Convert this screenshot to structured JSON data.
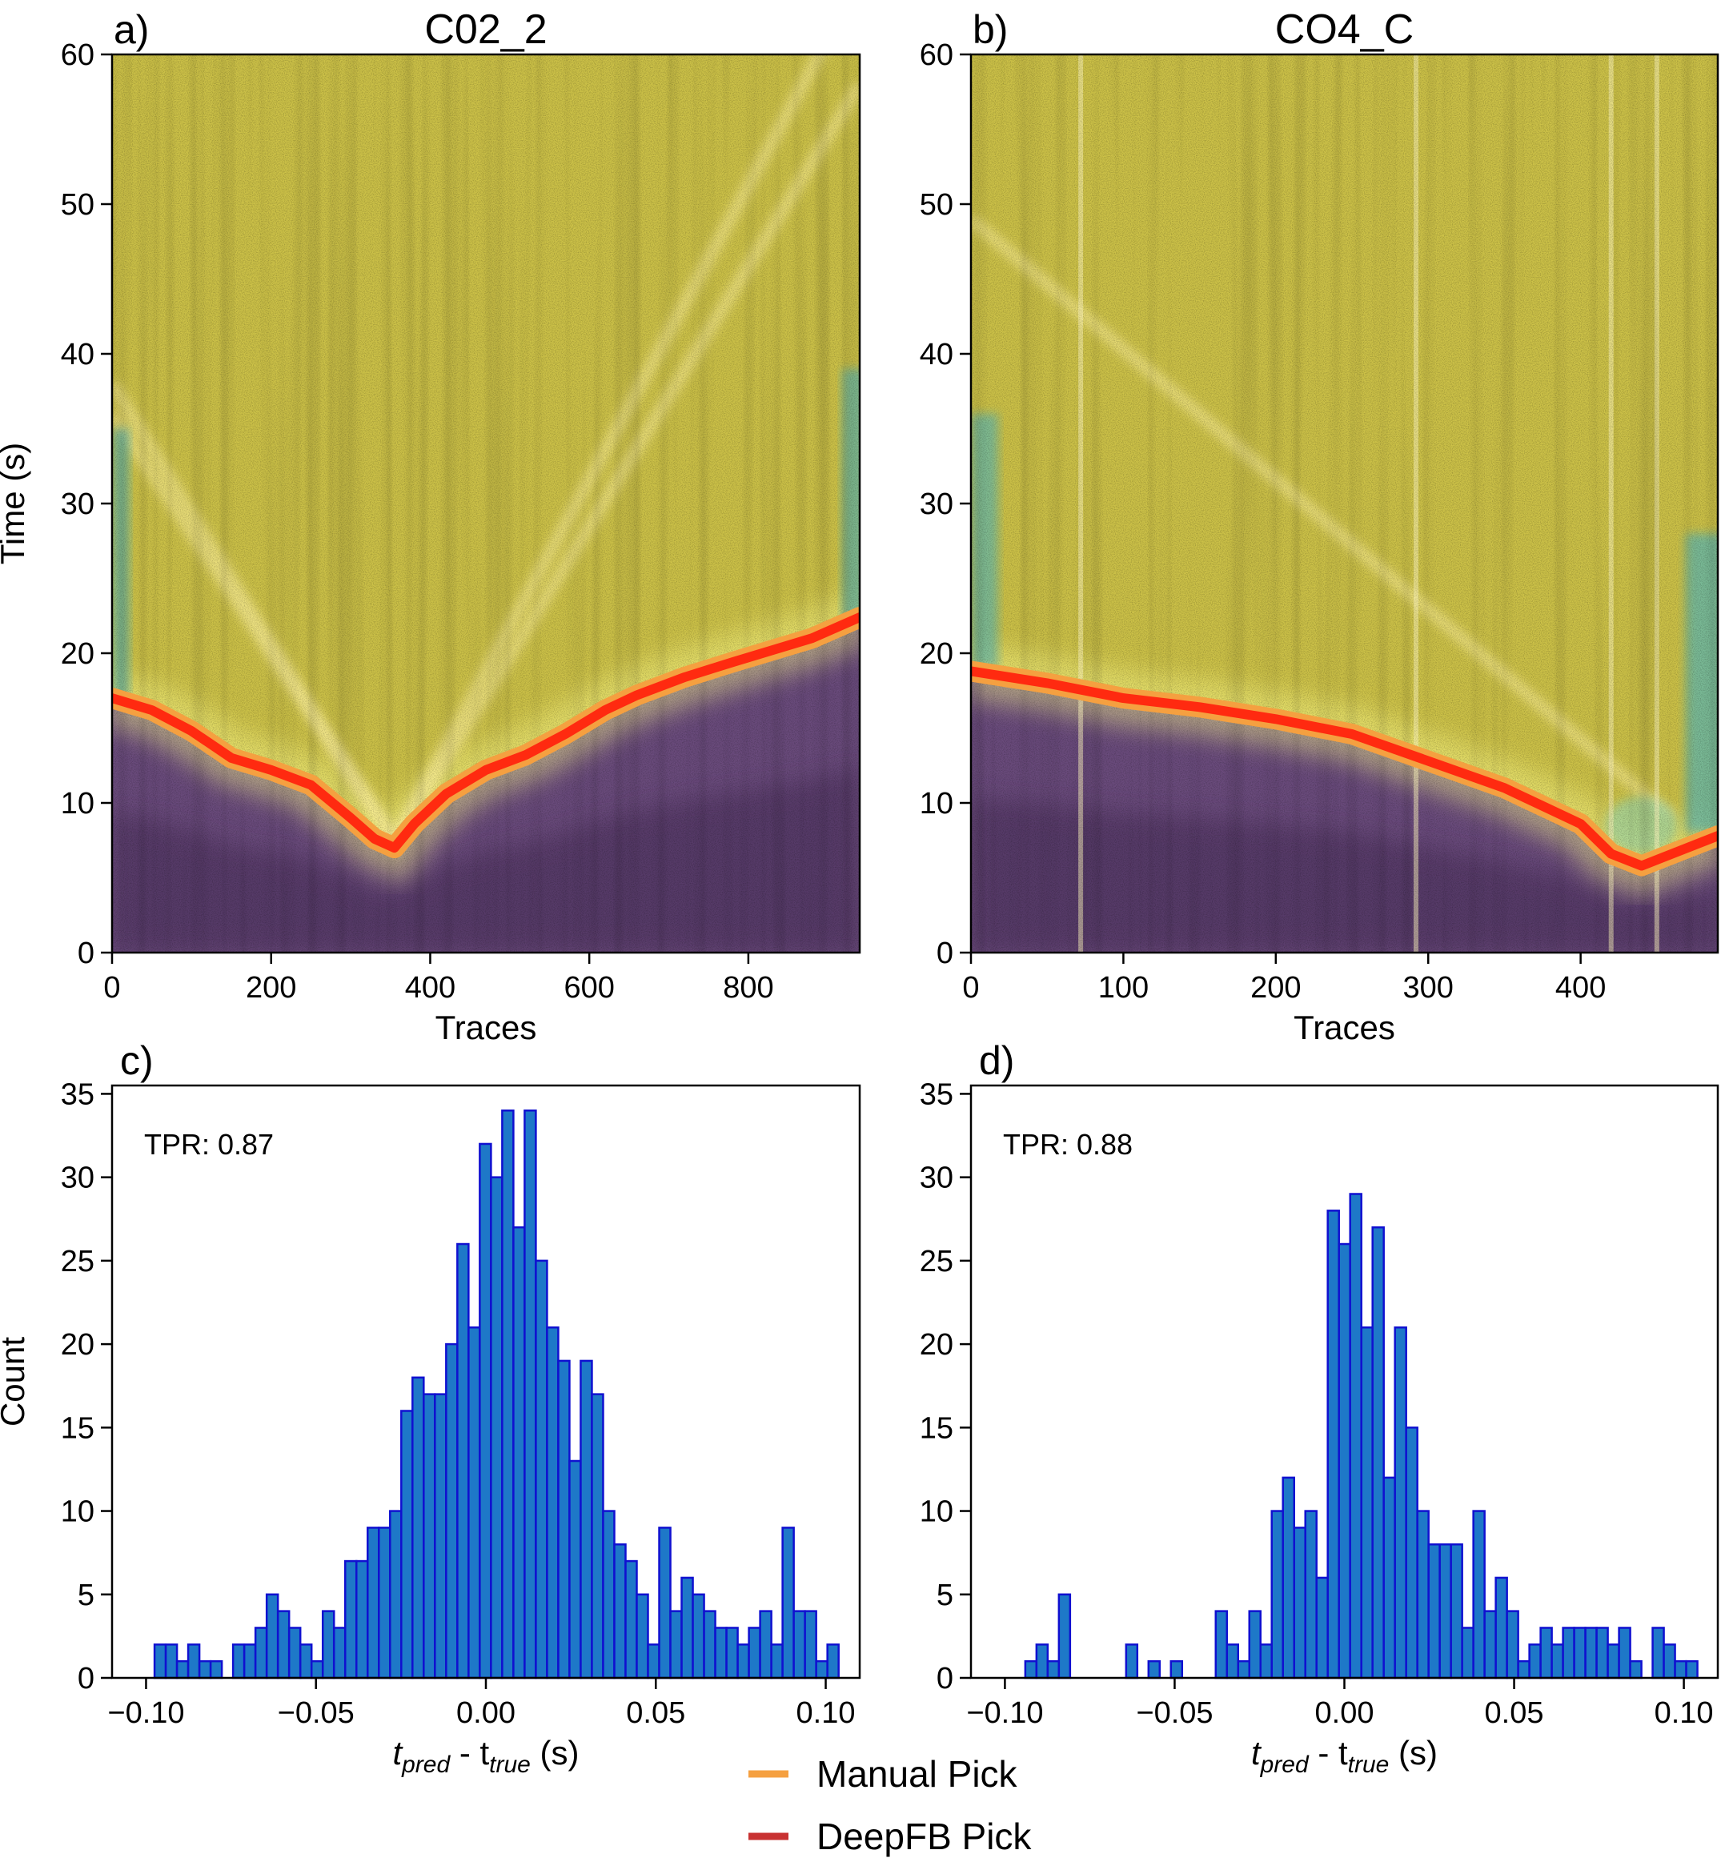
{
  "figure": {
    "legend": [
      {
        "label": "Manual Pick",
        "color": "#f5a040"
      },
      {
        "label": "DeepFB Pick",
        "color": "#c83232"
      }
    ]
  },
  "chart_data": [
    {
      "type": "heatmap",
      "panel": "a)",
      "title": "C02_2",
      "xlabel": "Traces",
      "ylabel": "Time (s)",
      "xlim": [
        0,
        940
      ],
      "ylim": [
        0,
        60
      ],
      "xticks": [
        0,
        200,
        400,
        600,
        800
      ],
      "yticks": [
        0,
        10,
        20,
        30,
        40,
        50,
        60
      ],
      "colors": {
        "above": "#cdc248",
        "below": "#6a4b7c",
        "dark_below": "#4a2f5a",
        "glow": "#ffff90",
        "edge": "#5fb8b0"
      },
      "series": [
        {
          "name": "Manual Pick",
          "x": [
            0,
            50,
            100,
            150,
            200,
            250,
            300,
            330,
            355,
            380,
            420,
            470,
            520,
            570,
            620,
            660,
            720,
            780,
            830,
            880,
            940
          ],
          "y": [
            17.0,
            16.2,
            14.8,
            13.0,
            12.2,
            11.2,
            9.0,
            7.6,
            7.0,
            8.6,
            10.6,
            12.2,
            13.2,
            14.6,
            16.2,
            17.2,
            18.4,
            19.4,
            20.2,
            21.0,
            22.4
          ]
        },
        {
          "name": "DeepFB Pick",
          "x": [
            0,
            50,
            100,
            150,
            200,
            250,
            300,
            330,
            355,
            380,
            420,
            470,
            520,
            570,
            620,
            660,
            720,
            780,
            830,
            880,
            940
          ],
          "y": [
            17.0,
            16.2,
            14.8,
            13.0,
            12.2,
            11.2,
            9.0,
            7.6,
            7.0,
            8.6,
            10.6,
            12.2,
            13.2,
            14.6,
            16.2,
            17.2,
            18.4,
            19.4,
            20.2,
            21.0,
            22.4
          ]
        }
      ],
      "arrivals": [
        {
          "x": [
            0,
            355,
            940
          ],
          "y": [
            38,
            7.2,
            58
          ]
        },
        {
          "x": [
            0,
            355,
            940
          ],
          "y": [
            36,
            7.5,
            65
          ]
        }
      ]
    },
    {
      "type": "heatmap",
      "panel": "b)",
      "title": "CO4_C",
      "xlabel": "Traces",
      "ylabel": "",
      "xlim": [
        0,
        490
      ],
      "ylim": [
        0,
        60
      ],
      "xticks": [
        0,
        100,
        200,
        300,
        400
      ],
      "yticks": [
        0,
        10,
        20,
        30,
        40,
        50,
        60
      ],
      "colors": {
        "above": "#cdc248",
        "below": "#6a4b7c",
        "dark_below": "#4a2f5a",
        "glow": "#ffff90",
        "edge": "#5fb8b0"
      },
      "series": [
        {
          "name": "Manual Pick",
          "x": [
            0,
            50,
            100,
            150,
            200,
            250,
            300,
            350,
            400,
            420,
            440,
            460,
            490
          ],
          "y": [
            18.8,
            18.0,
            17.0,
            16.4,
            15.6,
            14.6,
            12.8,
            11.0,
            8.6,
            6.6,
            5.8,
            6.6,
            7.8
          ]
        },
        {
          "name": "DeepFB Pick",
          "x": [
            0,
            50,
            100,
            150,
            200,
            250,
            300,
            350,
            400,
            420,
            440,
            460,
            490
          ],
          "y": [
            18.8,
            18.0,
            17.0,
            16.4,
            15.6,
            14.6,
            12.8,
            11.0,
            8.6,
            6.6,
            5.8,
            6.6,
            7.8
          ]
        }
      ],
      "arrivals": [
        {
          "x": [
            0,
            460
          ],
          "y": [
            49,
            9
          ]
        }
      ]
    },
    {
      "type": "bar",
      "panel": "c)",
      "xlabel_main": "t",
      "xlabel_sub1": "pred",
      "xlabel_mid": " - t",
      "xlabel_sub2": "true",
      "xlabel_unit": " (s)",
      "ylabel": "Count",
      "annotation": "TPR: 0.87",
      "xlim": [
        -0.11,
        0.11
      ],
      "ylim": [
        0,
        35.5
      ],
      "xticks": [
        -0.1,
        -0.05,
        0.0,
        0.05,
        0.1
      ],
      "xtick_labels": [
        "−0.10",
        "−0.05",
        "0.00",
        "0.05",
        "0.10"
      ],
      "yticks": [
        0,
        5,
        10,
        15,
        20,
        25,
        30,
        35
      ],
      "bin_start": -0.0975,
      "bin_width": 0.0033,
      "values": [
        2,
        2,
        1,
        2,
        1,
        1,
        0,
        2,
        2,
        3,
        5,
        4,
        3,
        2,
        1,
        4,
        3,
        7,
        7,
        9,
        9,
        10,
        16,
        18,
        17,
        17,
        20,
        26,
        21,
        32,
        30,
        34,
        27,
        34,
        25,
        21,
        19,
        13,
        19,
        17,
        10,
        8,
        7,
        5,
        2,
        9,
        4,
        6,
        5,
        4,
        3,
        3,
        2,
        3,
        4,
        2,
        9,
        4,
        4,
        1,
        2
      ],
      "bar_color": "#1e78c8",
      "edge_color": "#1010d0"
    },
    {
      "type": "bar",
      "panel": "d)",
      "xlabel_main": "t",
      "xlabel_sub1": "pred",
      "xlabel_mid": " - t",
      "xlabel_sub2": "true",
      "xlabel_unit": " (s)",
      "ylabel": "",
      "annotation": "TPR: 0.88",
      "xlim": [
        -0.11,
        0.11
      ],
      "ylim": [
        0,
        35.5
      ],
      "xticks": [
        -0.1,
        -0.05,
        0.0,
        0.05,
        0.1
      ],
      "xtick_labels": [
        "−0.10",
        "−0.05",
        "0.00",
        "0.05",
        "0.10"
      ],
      "yticks": [
        0,
        5,
        10,
        15,
        20,
        25,
        30,
        35
      ],
      "bin_start": -0.094,
      "bin_width": 0.0033,
      "values": [
        1,
        2,
        1,
        5,
        0,
        0,
        0,
        0,
        0,
        2,
        0,
        1,
        0,
        1,
        0,
        0,
        0,
        4,
        2,
        1,
        4,
        2,
        10,
        12,
        9,
        10,
        6,
        28,
        26,
        29,
        21,
        27,
        12,
        21,
        15,
        10,
        8,
        8,
        8,
        3,
        10,
        4,
        6,
        4,
        1,
        2,
        3,
        2,
        3,
        3,
        3,
        3,
        2,
        3,
        1,
        0,
        3,
        2,
        1,
        1
      ],
      "bar_color": "#1e78c8",
      "edge_color": "#1010d0"
    }
  ]
}
